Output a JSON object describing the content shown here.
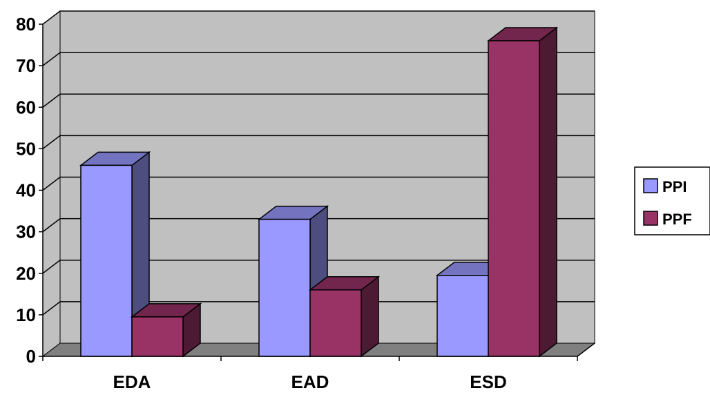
{
  "chart_data": {
    "type": "bar",
    "style": "3d-clustered-column",
    "categories": [
      "EDA",
      "EAD",
      "ESD"
    ],
    "series": [
      {
        "name": "PPI",
        "values": [
          46,
          33,
          19.5
        ],
        "color": "#9999ff"
      },
      {
        "name": "PPF",
        "values": [
          9.5,
          16,
          76
        ],
        "color": "#993366"
      }
    ],
    "ylim": [
      0,
      80
    ],
    "yticks": [
      "0",
      "10",
      "20",
      "30",
      "40",
      "50",
      "60",
      "70",
      "80"
    ],
    "grid": true,
    "legend_position": "right",
    "colors": {
      "wall": "#c0c0c0",
      "floor": "#808080",
      "gridline": "#000000"
    }
  }
}
